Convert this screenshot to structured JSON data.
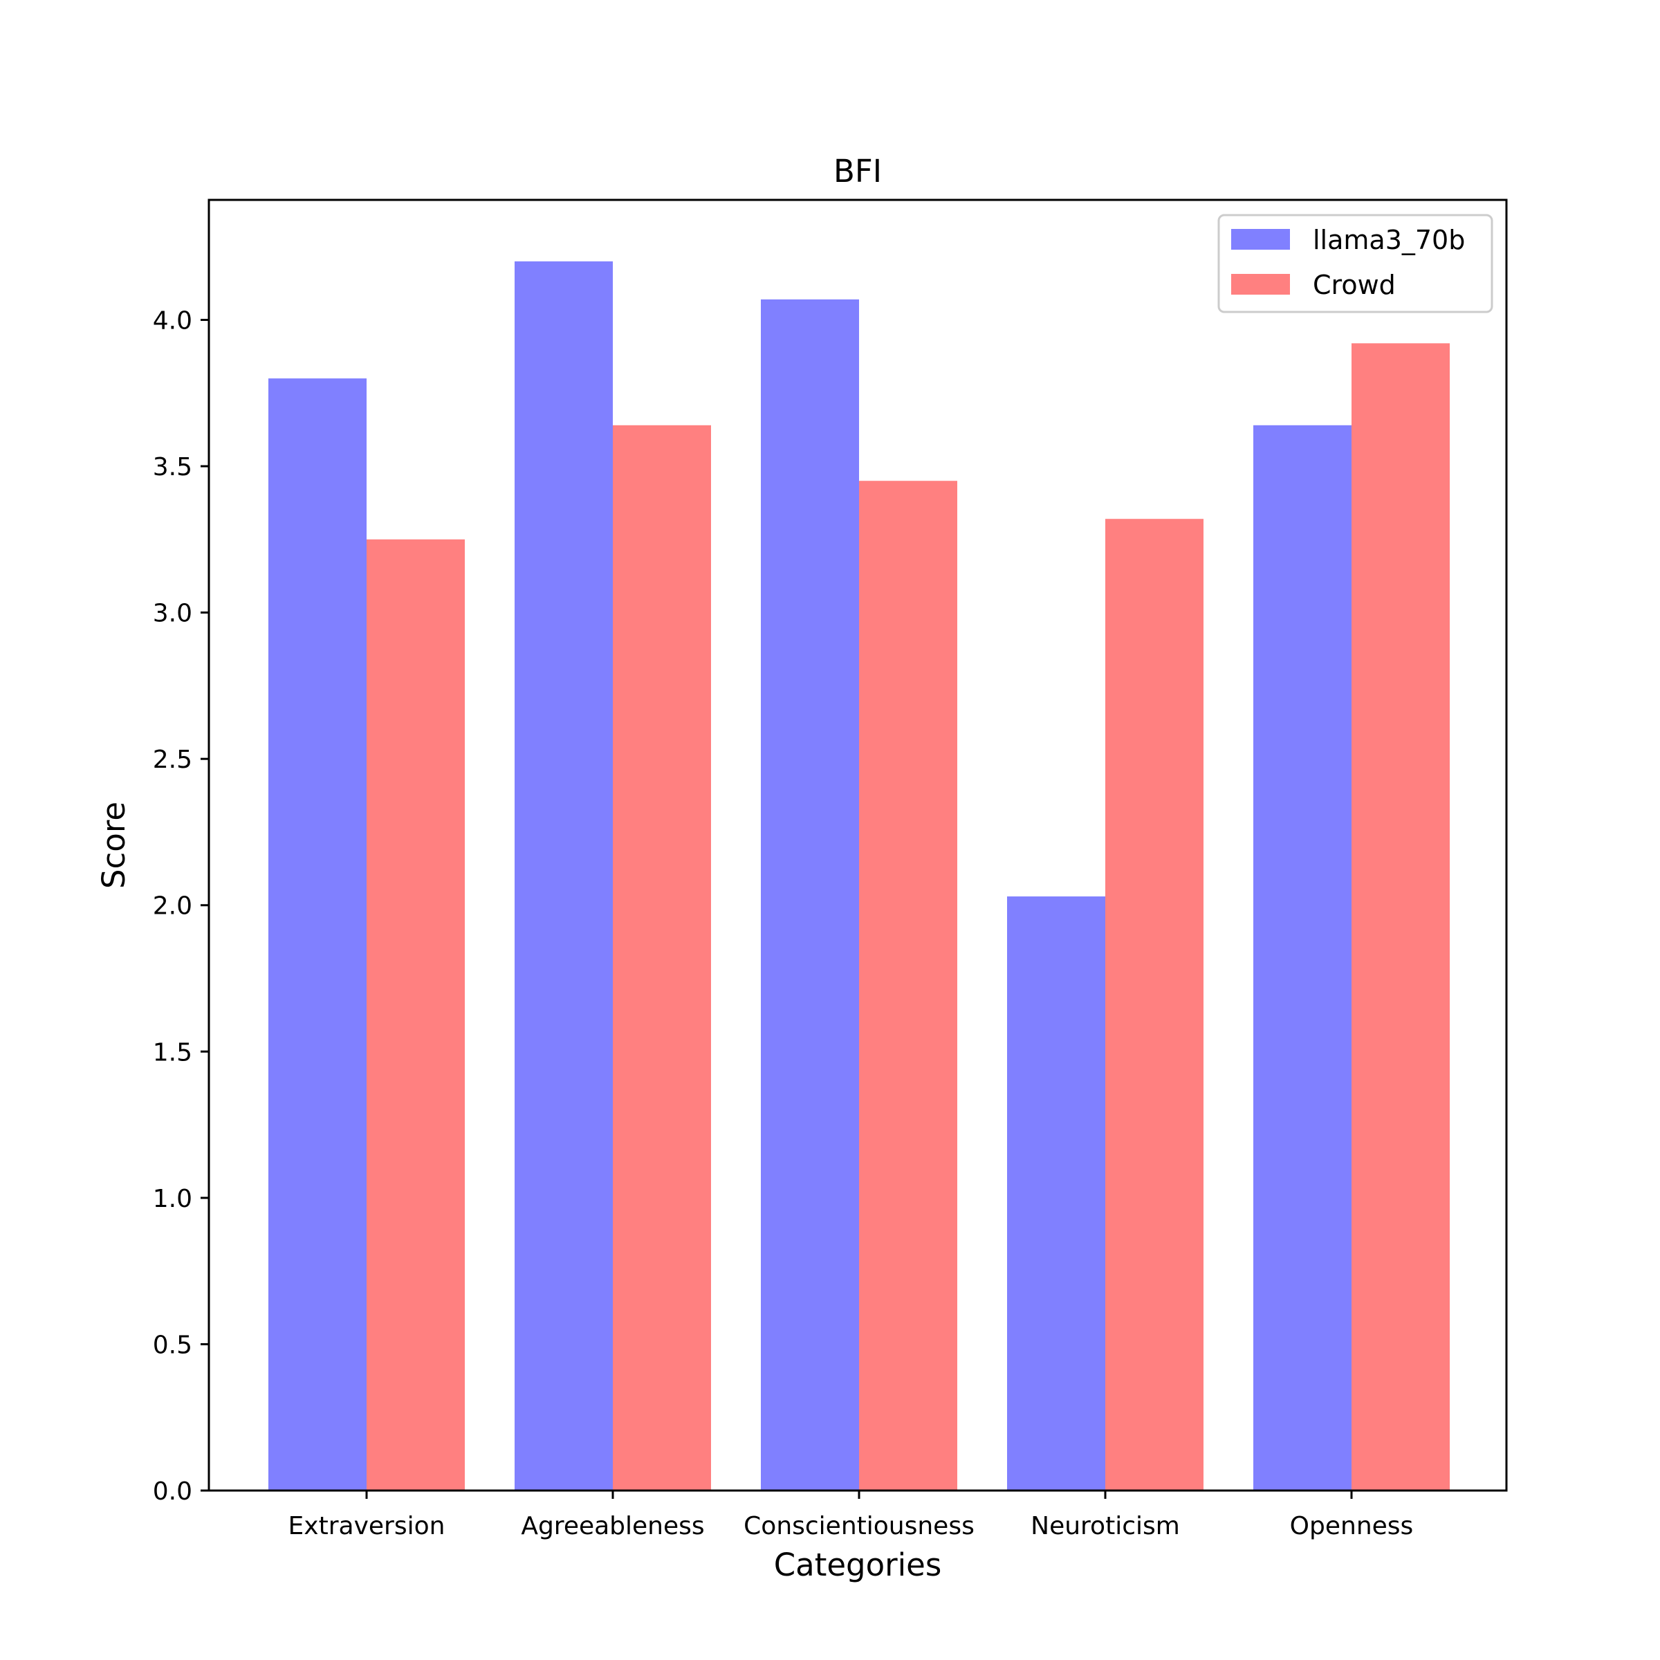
{
  "chart_data": {
    "type": "bar",
    "title": "BFI",
    "xlabel": "Categories",
    "ylabel": "Score",
    "categories": [
      "Extraversion",
      "Agreeableness",
      "Conscientiousness",
      "Neuroticism",
      "Openness"
    ],
    "series": [
      {
        "name": "llama3_70b",
        "values": [
          3.8,
          4.2,
          4.07,
          2.03,
          3.64
        ],
        "color": "#8080ff"
      },
      {
        "name": "Crowd",
        "values": [
          3.25,
          3.64,
          3.45,
          3.32,
          3.92
        ],
        "color": "#ff8080"
      }
    ],
    "ylim": [
      0,
      4.41
    ],
    "yticks": [
      "0.0",
      "0.5",
      "1.0",
      "1.5",
      "2.0",
      "2.5",
      "3.0",
      "3.5",
      "4.0"
    ],
    "legend_position": "top-right",
    "grid": false
  }
}
